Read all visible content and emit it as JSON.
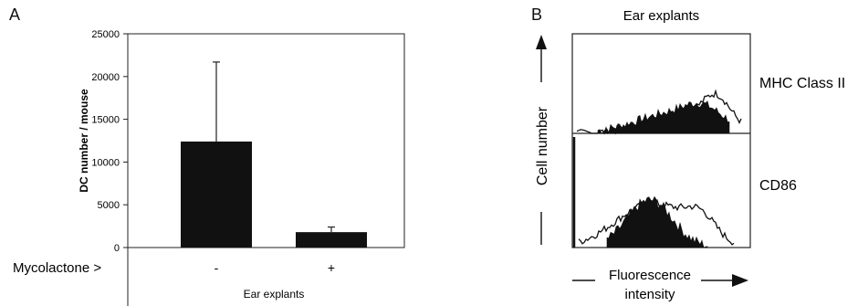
{
  "panels": {
    "a": {
      "letter": "A"
    },
    "b": {
      "letter": "B"
    }
  },
  "chart_data": [
    {
      "type": "bar",
      "panel": "A",
      "categories": [
        "-",
        "+"
      ],
      "values": [
        12400,
        1800
      ],
      "error_bars": [
        9300,
        600
      ],
      "ylabel": "DC number / mouse",
      "xlabel": "Ear explants",
      "row_label": "Mycolactone >",
      "ylim": [
        0,
        25000
      ],
      "yticks": [
        0,
        5000,
        10000,
        15000,
        20000,
        25000
      ],
      "bar_color": "#111111",
      "grid": false
    },
    {
      "type": "area",
      "panel": "B",
      "title": "Ear explants",
      "ylabel": "Cell number",
      "xlabel_line1": "Fluorescence",
      "xlabel_line2": "intensity",
      "series": [
        {
          "name": "MHC Class II"
        },
        {
          "name": "CD86"
        }
      ],
      "fill_color": "#111111",
      "outline_color": "#111111"
    }
  ]
}
